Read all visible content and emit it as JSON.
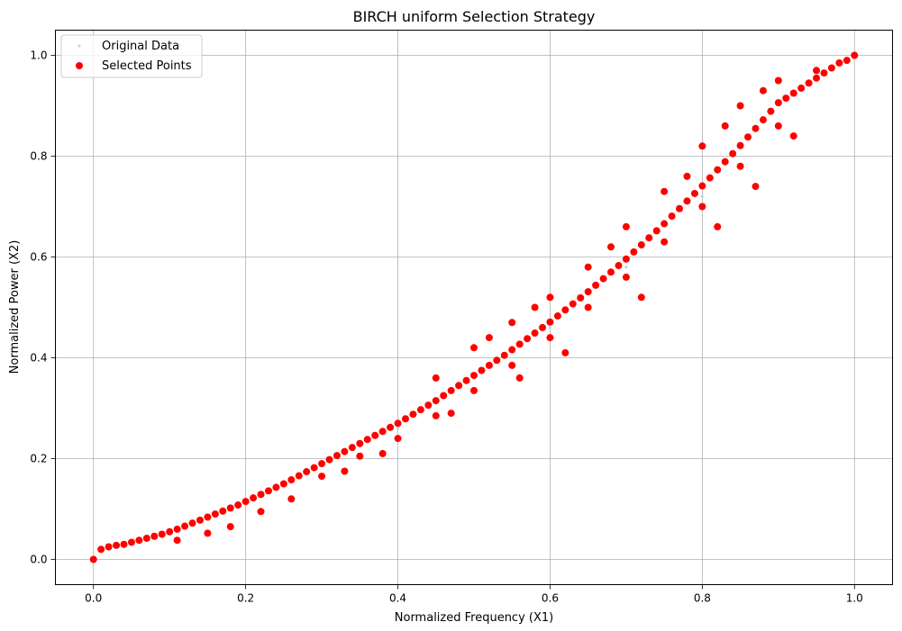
{
  "chart_data": {
    "type": "scatter",
    "title": "BIRCH uniform Selection Strategy",
    "xlabel": "Normalized Frequency (X1)",
    "ylabel": "Normalized Power (X2)",
    "xlim": [
      -0.05,
      1.05
    ],
    "ylim": [
      -0.05,
      1.05
    ],
    "xticks": [
      0.0,
      0.2,
      0.4,
      0.6,
      0.8,
      1.0
    ],
    "yticks": [
      0.0,
      0.2,
      0.4,
      0.6,
      0.8,
      1.0
    ],
    "xtick_labels": [
      "0.0",
      "0.2",
      "0.4",
      "0.6",
      "0.8",
      "1.0"
    ],
    "ytick_labels": [
      "0.0",
      "0.2",
      "0.4",
      "0.6",
      "0.8",
      "1.0"
    ],
    "grid": true,
    "legend_position": "top-left",
    "series": [
      {
        "name": "Original Data",
        "color": "#add8e6",
        "points": [
          [
            0.0,
            0.0
          ],
          [
            0.1,
            0.05
          ],
          [
            0.2,
            0.11
          ],
          [
            0.3,
            0.19
          ],
          [
            0.4,
            0.26
          ],
          [
            0.5,
            0.36
          ],
          [
            0.6,
            0.46
          ],
          [
            0.7,
            0.58
          ],
          [
            0.8,
            0.72
          ],
          [
            0.9,
            0.86
          ],
          [
            1.0,
            1.0
          ]
        ]
      },
      {
        "name": "Selected Points",
        "color": "#ff0000",
        "points": [
          [
            0.0,
            0.0
          ],
          [
            0.01,
            0.02
          ],
          [
            0.02,
            0.025
          ],
          [
            0.03,
            0.028
          ],
          [
            0.04,
            0.03
          ],
          [
            0.05,
            0.034
          ],
          [
            0.06,
            0.038
          ],
          [
            0.07,
            0.042
          ],
          [
            0.08,
            0.046
          ],
          [
            0.09,
            0.05
          ],
          [
            0.1,
            0.055
          ],
          [
            0.11,
            0.06
          ],
          [
            0.12,
            0.066
          ],
          [
            0.13,
            0.072
          ],
          [
            0.14,
            0.078
          ],
          [
            0.15,
            0.084
          ],
          [
            0.16,
            0.09
          ],
          [
            0.17,
            0.096
          ],
          [
            0.18,
            0.102
          ],
          [
            0.19,
            0.108
          ],
          [
            0.2,
            0.115
          ],
          [
            0.21,
            0.122
          ],
          [
            0.22,
            0.129
          ],
          [
            0.23,
            0.136
          ],
          [
            0.24,
            0.143
          ],
          [
            0.25,
            0.15
          ],
          [
            0.26,
            0.158
          ],
          [
            0.27,
            0.166
          ],
          [
            0.28,
            0.174
          ],
          [
            0.29,
            0.182
          ],
          [
            0.3,
            0.19
          ],
          [
            0.31,
            0.198
          ],
          [
            0.32,
            0.206
          ],
          [
            0.33,
            0.214
          ],
          [
            0.34,
            0.222
          ],
          [
            0.35,
            0.23
          ],
          [
            0.36,
            0.238
          ],
          [
            0.37,
            0.246
          ],
          [
            0.38,
            0.254
          ],
          [
            0.39,
            0.262
          ],
          [
            0.4,
            0.27
          ],
          [
            0.41,
            0.279
          ],
          [
            0.42,
            0.288
          ],
          [
            0.43,
            0.297
          ],
          [
            0.44,
            0.306
          ],
          [
            0.45,
            0.315
          ],
          [
            0.46,
            0.325
          ],
          [
            0.47,
            0.335
          ],
          [
            0.48,
            0.345
          ],
          [
            0.49,
            0.355
          ],
          [
            0.5,
            0.365
          ],
          [
            0.51,
            0.375
          ],
          [
            0.52,
            0.385
          ],
          [
            0.53,
            0.395
          ],
          [
            0.54,
            0.405
          ],
          [
            0.55,
            0.416
          ],
          [
            0.56,
            0.427
          ],
          [
            0.57,
            0.438
          ],
          [
            0.58,
            0.449
          ],
          [
            0.59,
            0.46
          ],
          [
            0.6,
            0.471
          ],
          [
            0.61,
            0.483
          ],
          [
            0.62,
            0.495
          ],
          [
            0.63,
            0.507
          ],
          [
            0.64,
            0.519
          ],
          [
            0.65,
            0.531
          ],
          [
            0.66,
            0.544
          ],
          [
            0.67,
            0.557
          ],
          [
            0.68,
            0.57
          ],
          [
            0.69,
            0.583
          ],
          [
            0.7,
            0.596
          ],
          [
            0.71,
            0.61
          ],
          [
            0.72,
            0.624
          ],
          [
            0.73,
            0.638
          ],
          [
            0.74,
            0.652
          ],
          [
            0.75,
            0.666
          ],
          [
            0.76,
            0.681
          ],
          [
            0.77,
            0.696
          ],
          [
            0.78,
            0.711
          ],
          [
            0.79,
            0.726
          ],
          [
            0.8,
            0.741
          ],
          [
            0.81,
            0.757
          ],
          [
            0.82,
            0.773
          ],
          [
            0.83,
            0.789
          ],
          [
            0.84,
            0.805
          ],
          [
            0.85,
            0.821
          ],
          [
            0.86,
            0.838
          ],
          [
            0.87,
            0.855
          ],
          [
            0.88,
            0.872
          ],
          [
            0.89,
            0.889
          ],
          [
            0.9,
            0.906
          ],
          [
            0.91,
            0.915
          ],
          [
            0.92,
            0.925
          ],
          [
            0.93,
            0.935
          ],
          [
            0.94,
            0.945
          ],
          [
            0.95,
            0.955
          ],
          [
            0.96,
            0.965
          ],
          [
            0.97,
            0.975
          ],
          [
            0.98,
            0.985
          ],
          [
            0.99,
            0.99
          ],
          [
            1.0,
            1.0
          ],
          [
            0.3,
            0.165
          ],
          [
            0.35,
            0.205
          ],
          [
            0.4,
            0.24
          ],
          [
            0.45,
            0.285
          ],
          [
            0.5,
            0.335
          ],
          [
            0.55,
            0.385
          ],
          [
            0.6,
            0.44
          ],
          [
            0.65,
            0.5
          ],
          [
            0.7,
            0.56
          ],
          [
            0.75,
            0.63
          ],
          [
            0.8,
            0.7
          ],
          [
            0.85,
            0.78
          ],
          [
            0.9,
            0.86
          ],
          [
            0.5,
            0.42
          ],
          [
            0.55,
            0.47
          ],
          [
            0.6,
            0.52
          ],
          [
            0.65,
            0.58
          ],
          [
            0.7,
            0.66
          ],
          [
            0.75,
            0.73
          ],
          [
            0.8,
            0.82
          ],
          [
            0.85,
            0.9
          ],
          [
            0.88,
            0.93
          ],
          [
            0.45,
            0.36
          ],
          [
            0.52,
            0.44
          ],
          [
            0.58,
            0.5
          ],
          [
            0.68,
            0.62
          ],
          [
            0.78,
            0.76
          ],
          [
            0.83,
            0.86
          ],
          [
            0.9,
            0.95
          ],
          [
            0.95,
            0.97
          ],
          [
            0.11,
            0.038
          ],
          [
            0.15,
            0.052
          ],
          [
            0.18,
            0.065
          ],
          [
            0.22,
            0.095
          ],
          [
            0.26,
            0.12
          ],
          [
            0.33,
            0.175
          ],
          [
            0.38,
            0.21
          ],
          [
            0.47,
            0.29
          ],
          [
            0.56,
            0.36
          ],
          [
            0.62,
            0.41
          ],
          [
            0.72,
            0.52
          ],
          [
            0.82,
            0.66
          ],
          [
            0.87,
            0.74
          ],
          [
            0.92,
            0.84
          ]
        ]
      }
    ]
  }
}
